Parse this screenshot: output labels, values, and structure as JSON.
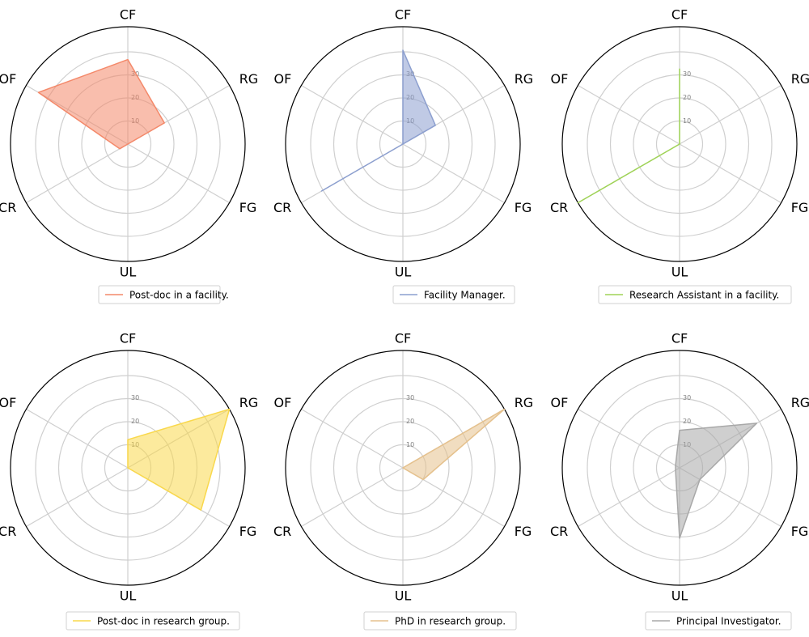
{
  "chart_data": [
    {
      "type": "radar",
      "axes": [
        "CF",
        "RG",
        "FG",
        "UL",
        "CR",
        "OF"
      ],
      "r_ticks": [
        10,
        20,
        30
      ],
      "rlim": [
        0,
        50
      ],
      "grid": true,
      "legend_position": "bottom-right",
      "series": [
        {
          "name": "Post-doc in a facility.",
          "values": [
            36,
            18,
            0,
            0,
            4,
            44
          ],
          "color": "#f4896a"
        }
      ]
    },
    {
      "type": "radar",
      "axes": [
        "CF",
        "RG",
        "FG",
        "UL",
        "CR",
        "OF"
      ],
      "r_ticks": [
        10,
        20,
        30
      ],
      "rlim": [
        0,
        50
      ],
      "grid": true,
      "legend_position": "bottom-right",
      "series": [
        {
          "name": "Facility Manager.",
          "values": [
            40,
            16,
            0,
            0,
            40,
            0
          ],
          "color": "#8c9fcf"
        }
      ]
    },
    {
      "type": "radar",
      "axes": [
        "CF",
        "RG",
        "FG",
        "UL",
        "CR",
        "OF"
      ],
      "r_ticks": [
        10,
        20,
        30
      ],
      "rlim": [
        0,
        50
      ],
      "grid": true,
      "legend_position": "bottom-right",
      "series": [
        {
          "name": "Research Assistant in a facility.",
          "values": [
            32,
            0,
            0,
            0,
            50,
            0
          ],
          "color": "#9fd356"
        }
      ]
    },
    {
      "type": "radar",
      "axes": [
        "CF",
        "RG",
        "FG",
        "UL",
        "CR",
        "OF"
      ],
      "r_ticks": [
        10,
        20,
        30
      ],
      "rlim": [
        0,
        50
      ],
      "grid": true,
      "legend_position": "bottom-right",
      "series": [
        {
          "name": "Post-doc in research group.",
          "values": [
            12,
            50,
            36,
            0,
            0,
            0
          ],
          "color": "#f9d84c"
        }
      ]
    },
    {
      "type": "radar",
      "axes": [
        "CF",
        "RG",
        "FG",
        "UL",
        "CR",
        "OF"
      ],
      "r_ticks": [
        10,
        20,
        30
      ],
      "rlim": [
        0,
        50
      ],
      "grid": true,
      "legend_position": "bottom-right",
      "series": [
        {
          "name": "PhD in research group.",
          "values": [
            0,
            50,
            10,
            0,
            0,
            0
          ],
          "color": "#e5c18d"
        }
      ]
    },
    {
      "type": "radar",
      "axes": [
        "CF",
        "RG",
        "FG",
        "UL",
        "CR",
        "OF"
      ],
      "r_ticks": [
        10,
        20,
        30
      ],
      "rlim": [
        0,
        50
      ],
      "grid": true,
      "legend_position": "bottom-right",
      "series": [
        {
          "name": "Principal Investigator.",
          "values": [
            16,
            38,
            10,
            30,
            2,
            2
          ],
          "color": "#a8a8a8"
        }
      ]
    }
  ]
}
